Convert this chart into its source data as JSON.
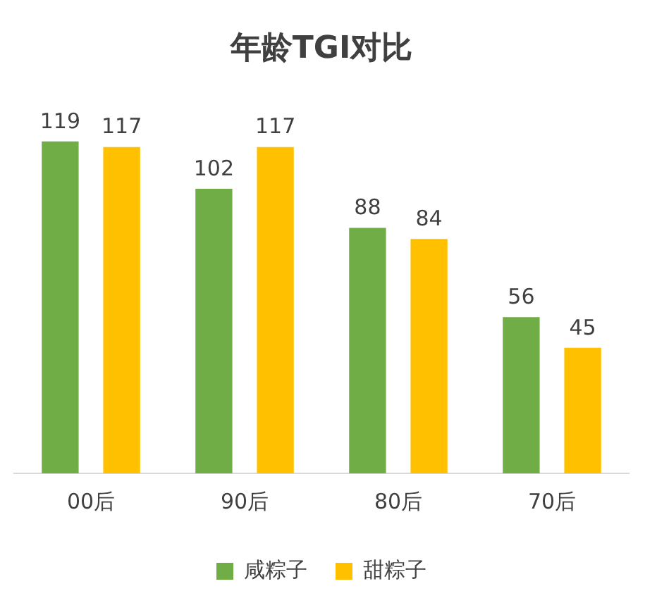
{
  "chart_data": {
    "type": "bar",
    "title": "年龄TGI对比",
    "categories": [
      "00后",
      "90后",
      "80后",
      "70后"
    ],
    "series": [
      {
        "name": "咸粽子",
        "color": "#70ad47",
        "values": [
          119,
          102,
          88,
          56
        ]
      },
      {
        "name": "甜粽子",
        "color": "#ffc000",
        "values": [
          117,
          117,
          84,
          45
        ]
      }
    ],
    "data_labels": true,
    "legend": "bottom",
    "grid": false
  }
}
